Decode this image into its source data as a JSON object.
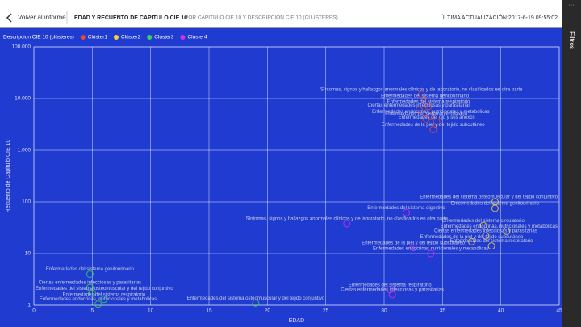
{
  "header": {
    "back": "Volver al informe",
    "title": "EDAD Y RECUENTO DE CAPITULO CIE 10",
    "subtitle": "POR CAPITULO CIE 10 Y DESCRIPCION CIE 10 (CLÚSTERES)",
    "updated": "ÚLTIMA ACTUALIZACIÓN:2017-6-19 09:55:02"
  },
  "sidebar": {
    "label": "Filtros"
  },
  "chart_data": {
    "type": "scatter",
    "legend_title": "Descripcion CIE 10 (clústeres)",
    "x_label": "EDAD",
    "y_label": "Recuento de Capitulo CIE 10",
    "xlim": [
      0,
      45
    ],
    "xticks": [
      0,
      5,
      10,
      15,
      20,
      25,
      30,
      35,
      40,
      45
    ],
    "ylim": [
      1,
      100000
    ],
    "log_y": true,
    "grid": true,
    "yticks": [
      1,
      10,
      100,
      {
        "value": 1000,
        "label": "1.000"
      },
      {
        "value": 10000,
        "label": "10.000"
      },
      {
        "value": 100000,
        "label": "100.000"
      }
    ],
    "series": [
      {
        "name": "Clúster1",
        "color": "#e8453c",
        "x": [
          33.2,
          33.5,
          33.8,
          33.0,
          34.0,
          33.6,
          34.5,
          34.2
        ],
        "values": [
          12000,
          9000,
          7000,
          6000,
          4500,
          4000,
          3500,
          2500
        ],
        "labels": [
          "Síntomas, signos y hallazgos anormales clínicos y de laboratorio, no clasificados en otra parte",
          "Enfermedades del sistema genitourinario",
          "Enfermedades del sistema respiratorio",
          "Ciertas enfermedades infecciosas y parasitarias",
          "Enfermedades endocrinas, nutricionales y metabólicas",
          "Enfermedades del sistema circulatorio",
          "Enfermedades del ojo y sus anexos",
          "Enfermedades de la piel y del tejido subcutáneo"
        ]
      },
      {
        "name": "Clúster2",
        "color": "#f2d13a",
        "x": [
          39.5,
          39.5,
          38.5,
          40.5,
          38.7,
          37.5,
          39.2
        ],
        "values": [
          100,
          75,
          35,
          27,
          22,
          17,
          14
        ],
        "labels": [
          "Enfermedades del sistema osteomuscular y del tejido conjuntivo",
          "Enfermedades del sistema genitourinario",
          "Enfermedades del sistema circulatorio",
          "Enfermedades endocrinas, nutricionales y metabólicas",
          "Ciertas enfermedades infecciosas y parasitarias",
          "Enfermedades de la piel y del tejido subcutáneo",
          "Enfermedades del sistema respiratorio"
        ]
      },
      {
        "name": "Clúster3",
        "color": "#37d058",
        "x": [
          4.8,
          4.8,
          5.0,
          6.0,
          5.5,
          19.0
        ],
        "values": [
          4,
          2.2,
          1.7,
          1.3,
          1.05,
          1.1
        ],
        "labels": [
          "Enfermedades del sistema genitourinario",
          "Ciertas enfermedades infecciosas y parasitarias",
          "Enfermedades del sistema osteomuscular y del tejido conjuntivo",
          "Enfermedades del sistema respiratorio",
          "Enfermedades endocrinas, nutricionales y metabolicas",
          "Enfermedades del sistema osteomuscular y del tejido conjuntivo"
        ]
      },
      {
        "name": "Clúster4",
        "color": "#d62fe0",
        "x": [
          26.8,
          31.9,
          32.5,
          34.0,
          30.5,
          30.7
        ],
        "values": [
          38,
          62,
          13,
          10,
          2,
          1.6
        ],
        "labels": [
          "Síntomas, signos y hallazgos anormales clínicos y de laboratorio, no clasificados en otra parte",
          "Enfermedades del sistema digestivo",
          "Enfermedades de la piel y del tejido subcutáneo",
          "Enfermedades endocrinas nutricionales y metabólicas",
          "Enfermedades del sistema respiratorio",
          "Ciertas enfermedades infecciosas y parasitarias"
        ]
      }
    ]
  }
}
